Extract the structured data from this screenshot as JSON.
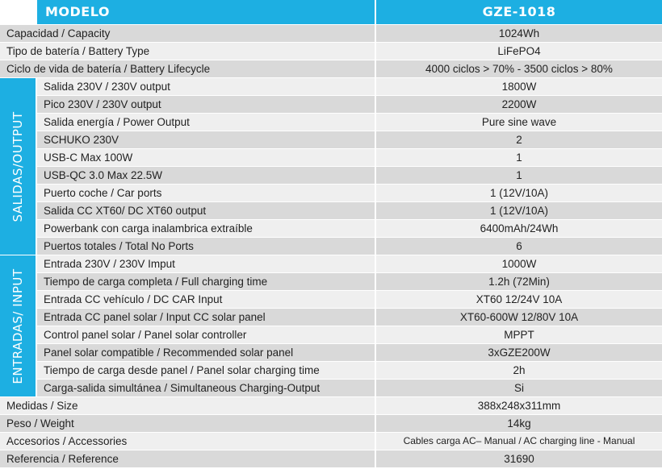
{
  "header": {
    "model_label": "MODELO",
    "model_value": "GZE-1018"
  },
  "top_rows": [
    {
      "label": "Capacidad / Capacity",
      "value": "1024Wh"
    },
    {
      "label": "Tipo de batería / Battery Type",
      "value": "LiFePO4"
    },
    {
      "label": "Ciclo de vida de batería / Battery Lifecycle",
      "value": "4000 ciclos > 70% - 3500 ciclos > 80%"
    }
  ],
  "output_section": {
    "title": "SALIDAS/OUTPUT",
    "rows": [
      {
        "label": "Salida 230V / 230V output",
        "value": "1800W"
      },
      {
        "label": "Pico 230V / 230V output",
        "value": "2200W"
      },
      {
        "label": "Salida energía / Power Output",
        "value": "Pure sine wave"
      },
      {
        "label": "SCHUKO 230V",
        "value": "2"
      },
      {
        "label": "USB-C Max 100W",
        "value": "1"
      },
      {
        "label": "USB-QC 3.0 Max 22.5W",
        "value": "1"
      },
      {
        "label": "Puerto coche / Car ports",
        "value": "1 (12V/10A)"
      },
      {
        "label": "Salida CC XT60/ DC XT60 output",
        "value": "1 (12V/10A)"
      },
      {
        "label": "Powerbank con carga inalambrica extraíble",
        "value": "6400mAh/24Wh"
      },
      {
        "label": "Puertos totales / Total No Ports",
        "value": "6"
      }
    ]
  },
  "input_section": {
    "title": "ENTRADAS/ INPUT",
    "rows": [
      {
        "label": "Entrada 230V / 230V Imput",
        "value": "1000W"
      },
      {
        "label": "Tiempo de carga completa / Full charging time",
        "value": "1.2h (72Min)"
      },
      {
        "label": "Entrada CC vehículo / DC CAR Input",
        "value": "XT60 12/24V 10A"
      },
      {
        "label": "Entrada CC panel solar / Input CC solar panel",
        "value": "XT60-600W 12/80V 10A"
      },
      {
        "label": "Control panel solar / Panel solar controller",
        "value": "MPPT"
      },
      {
        "label": "Panel solar compatible / Recommended solar panel",
        "value": "3xGZE200W"
      },
      {
        "label": "Tiempo de carga desde panel / Panel solar charging time",
        "value": "2h"
      },
      {
        "label": "Carga-salida simultánea / Simultaneous Charging-Output",
        "value": "Si"
      }
    ]
  },
  "bottom_rows": [
    {
      "label": "Medidas / Size",
      "value": "388x248x311mm"
    },
    {
      "label": "Peso / Weight",
      "value": "14kg"
    },
    {
      "label": "Accesorios / Accessories",
      "value": "Cables carga AC– Manual / AC charging line - Manual"
    },
    {
      "label": "Referencia / Reference",
      "value": "31690"
    }
  ],
  "colors": {
    "accent": "#1dafe2",
    "row_dark": "#d9d9d9",
    "row_light": "#efefef"
  }
}
